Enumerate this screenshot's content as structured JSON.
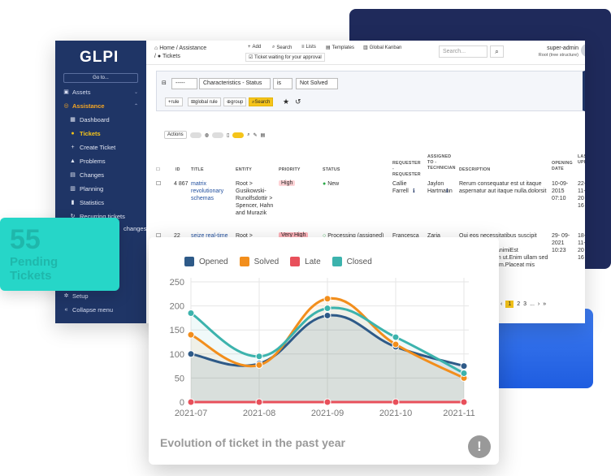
{
  "sidebar": {
    "logo": "GLPI",
    "goto": "Go to...",
    "sections": [
      {
        "label": "Assets",
        "icon": "box-icon"
      },
      {
        "label": "Assistance",
        "icon": "headset-icon",
        "active": true
      }
    ],
    "items": [
      {
        "label": "Dashboard",
        "icon": "grid-icon"
      },
      {
        "label": "Tickets",
        "icon": "ticket-icon",
        "active": true
      },
      {
        "label": "Create Ticket",
        "icon": "plus-icon"
      },
      {
        "label": "Problems",
        "icon": "warning-icon"
      },
      {
        "label": "Changes",
        "icon": "clipboard-icon"
      },
      {
        "label": "Planning",
        "icon": "calendar-icon"
      },
      {
        "label": "Statistics",
        "icon": "bar-chart-icon"
      },
      {
        "label": "Recurring tickets",
        "icon": "recurring-icon"
      },
      {
        "label": "changes",
        "icon": "recurring-icon"
      }
    ],
    "setup": "Setup",
    "collapse": "Collapse menu"
  },
  "topbar": {
    "breadcrumb_home": "Home",
    "breadcrumb_assistance": "Assistance",
    "breadcrumb_tickets": "Tickets",
    "buttons": {
      "add": "Add",
      "search": "Search",
      "lists": "Lists",
      "templates": "Templates",
      "kanban": "Global Kanban"
    },
    "waiting": "Ticket waiting for your approval",
    "search_placeholder": "Search...",
    "user_name": "super-admin",
    "user_entity": "Root (tree structure)"
  },
  "filter": {
    "op": "-----",
    "field": "Characteristics - Status",
    "cond": "is",
    "value": "Not Solved",
    "rule": "rule",
    "global_rule": "global rule",
    "group": "group",
    "search": "Search"
  },
  "actions": {
    "label": "Actions"
  },
  "table": {
    "headers": {
      "id": "ID",
      "title": "TITLE",
      "entity": "ENTITY",
      "priority": "PRIORITY",
      "status": "STATUS",
      "requester": "REQUESTER - REQUESTER",
      "assigned": "ASSIGNED TO - TECHNICIAN",
      "description": "DESCRIPTION",
      "opening": "OPENING DATE",
      "last": "LAS UPI"
    },
    "rows": [
      {
        "id": "4 867",
        "title": "matrix revolutionary schemas",
        "entity": "Root > Gusikowski-Runolfsdottir > Spencer, Hahn and Murazik",
        "priority": "High",
        "status": "New",
        "requester": "Callie Farrell",
        "assigned": "Jaylon Hartmann",
        "description": "Rerum consequatur est ut itaque aspernatur aut itaque nulla.dolorsit",
        "opening": "10-09-2015 07:10",
        "last": "22- 11- 20 16"
      },
      {
        "id": "22",
        "title": "seize real-time",
        "entity": "Root >",
        "priority": "Very High",
        "status": "Processing (assigned)",
        "requester": "Francesca",
        "assigned": "Zaria",
        "description": "Qui eos necessitatibus suscipit quaerat rerum consequatur.etanimiEst vitae.Voluptatem ut.Enim ullam sed architecto veniam.Placeat mis commodi",
        "opening": "29- 09- 2021 10:23",
        "last": "18- 11- 20 16"
      }
    ]
  },
  "pager": {
    "pages": [
      "1",
      "2",
      "3",
      "..."
    ]
  },
  "stat": {
    "value": "55",
    "label": "Pending Tickets"
  },
  "chart_data": {
    "type": "line",
    "title": "Evolution of ticket in the past year",
    "categories": [
      "2021-07",
      "2021-08",
      "2021-09",
      "2021-10",
      "2021-11"
    ],
    "ylim": [
      0,
      250
    ],
    "yticks": [
      0,
      50,
      100,
      150,
      200,
      250
    ],
    "legend_position": "top",
    "series": [
      {
        "name": "Opened",
        "color": "#2e5a88",
        "values": [
          100,
          80,
          180,
          115,
          75
        ]
      },
      {
        "name": "Solved",
        "color": "#f28e1c",
        "values": [
          140,
          77,
          215,
          120,
          50
        ]
      },
      {
        "name": "Late",
        "color": "#e8505b",
        "values": [
          0,
          0,
          0,
          0,
          0
        ]
      },
      {
        "name": "Closed",
        "color": "#3cb3ad",
        "values": [
          185,
          95,
          195,
          135,
          60
        ]
      }
    ]
  }
}
